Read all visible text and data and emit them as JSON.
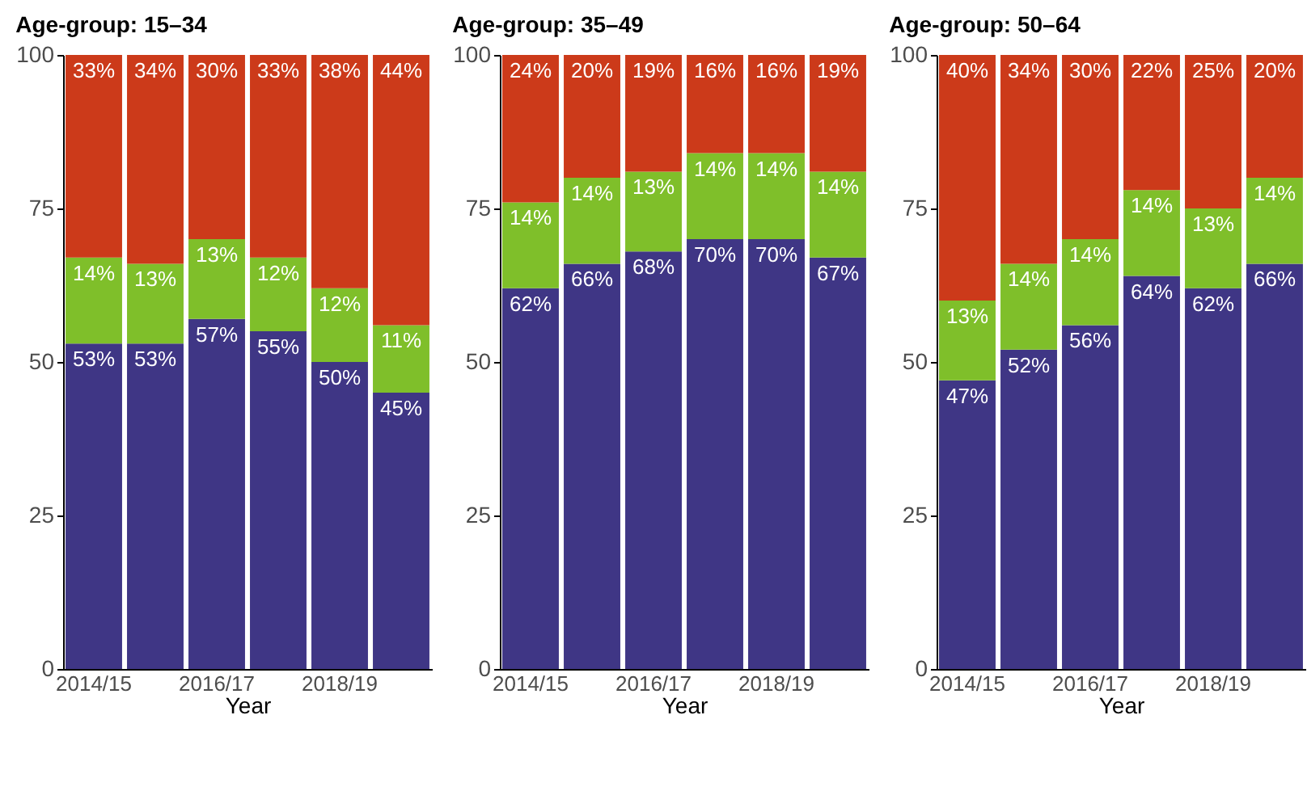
{
  "chart_data": [
    {
      "type": "bar",
      "stacked": true,
      "title": "Age-group: 15–34",
      "xlabel": "Year",
      "categories": [
        "2014/15",
        null,
        "2016/17",
        null,
        "2018/19",
        null
      ],
      "ylim": [
        0,
        100
      ],
      "yticks": [
        0,
        25,
        50,
        75,
        100
      ],
      "grid": false,
      "legend": false,
      "series": [
        {
          "color": "#3f3685",
          "values": [
            53,
            53,
            57,
            55,
            50,
            45
          ],
          "value_labels": [
            "53%",
            "53%",
            "57%",
            "55%",
            "50%",
            "45%"
          ]
        },
        {
          "color": "#7fbf2a",
          "values": [
            14,
            13,
            13,
            12,
            12,
            11
          ],
          "value_labels": [
            "14%",
            "13%",
            "13%",
            "12%",
            "12%",
            "11%"
          ]
        },
        {
          "color": "#cc3a1a",
          "values": [
            33,
            34,
            30,
            33,
            38,
            44
          ],
          "value_labels": [
            "33%",
            "34%",
            "30%",
            "33%",
            "38%",
            "44%"
          ]
        }
      ]
    },
    {
      "type": "bar",
      "stacked": true,
      "title": "Age-group: 35–49",
      "xlabel": "Year",
      "categories": [
        "2014/15",
        null,
        "2016/17",
        null,
        "2018/19",
        null
      ],
      "ylim": [
        0,
        100
      ],
      "yticks": [
        0,
        25,
        50,
        75,
        100
      ],
      "grid": false,
      "legend": false,
      "series": [
        {
          "color": "#3f3685",
          "values": [
            62,
            66,
            68,
            70,
            70,
            67
          ],
          "value_labels": [
            "62%",
            "66%",
            "68%",
            "70%",
            "70%",
            "67%"
          ]
        },
        {
          "color": "#7fbf2a",
          "values": [
            14,
            14,
            13,
            14,
            14,
            14
          ],
          "value_labels": [
            "14%",
            "14%",
            "13%",
            "14%",
            "14%",
            "14%"
          ]
        },
        {
          "color": "#cc3a1a",
          "values": [
            24,
            20,
            19,
            16,
            16,
            19
          ],
          "value_labels": [
            "24%",
            "20%",
            "19%",
            "16%",
            "16%",
            "19%"
          ]
        }
      ]
    },
    {
      "type": "bar",
      "stacked": true,
      "title": "Age-group: 50–64",
      "xlabel": "Year",
      "categories": [
        "2014/15",
        null,
        "2016/17",
        null,
        "2018/19",
        null
      ],
      "ylim": [
        0,
        100
      ],
      "yticks": [
        0,
        25,
        50,
        75,
        100
      ],
      "grid": false,
      "legend": false,
      "series": [
        {
          "color": "#3f3685",
          "values": [
            47,
            52,
            56,
            64,
            62,
            66
          ],
          "value_labels": [
            "47%",
            "52%",
            "56%",
            "64%",
            "62%",
            "66%"
          ]
        },
        {
          "color": "#7fbf2a",
          "values": [
            13,
            14,
            14,
            14,
            13,
            14
          ],
          "value_labels": [
            "13%",
            "14%",
            "14%",
            "14%",
            "13%",
            "14%"
          ]
        },
        {
          "color": "#cc3a1a",
          "values": [
            40,
            34,
            30,
            22,
            25,
            20
          ],
          "value_labels": [
            "40%",
            "34%",
            "30%",
            "22%",
            "25%",
            "20%"
          ]
        }
      ]
    }
  ]
}
